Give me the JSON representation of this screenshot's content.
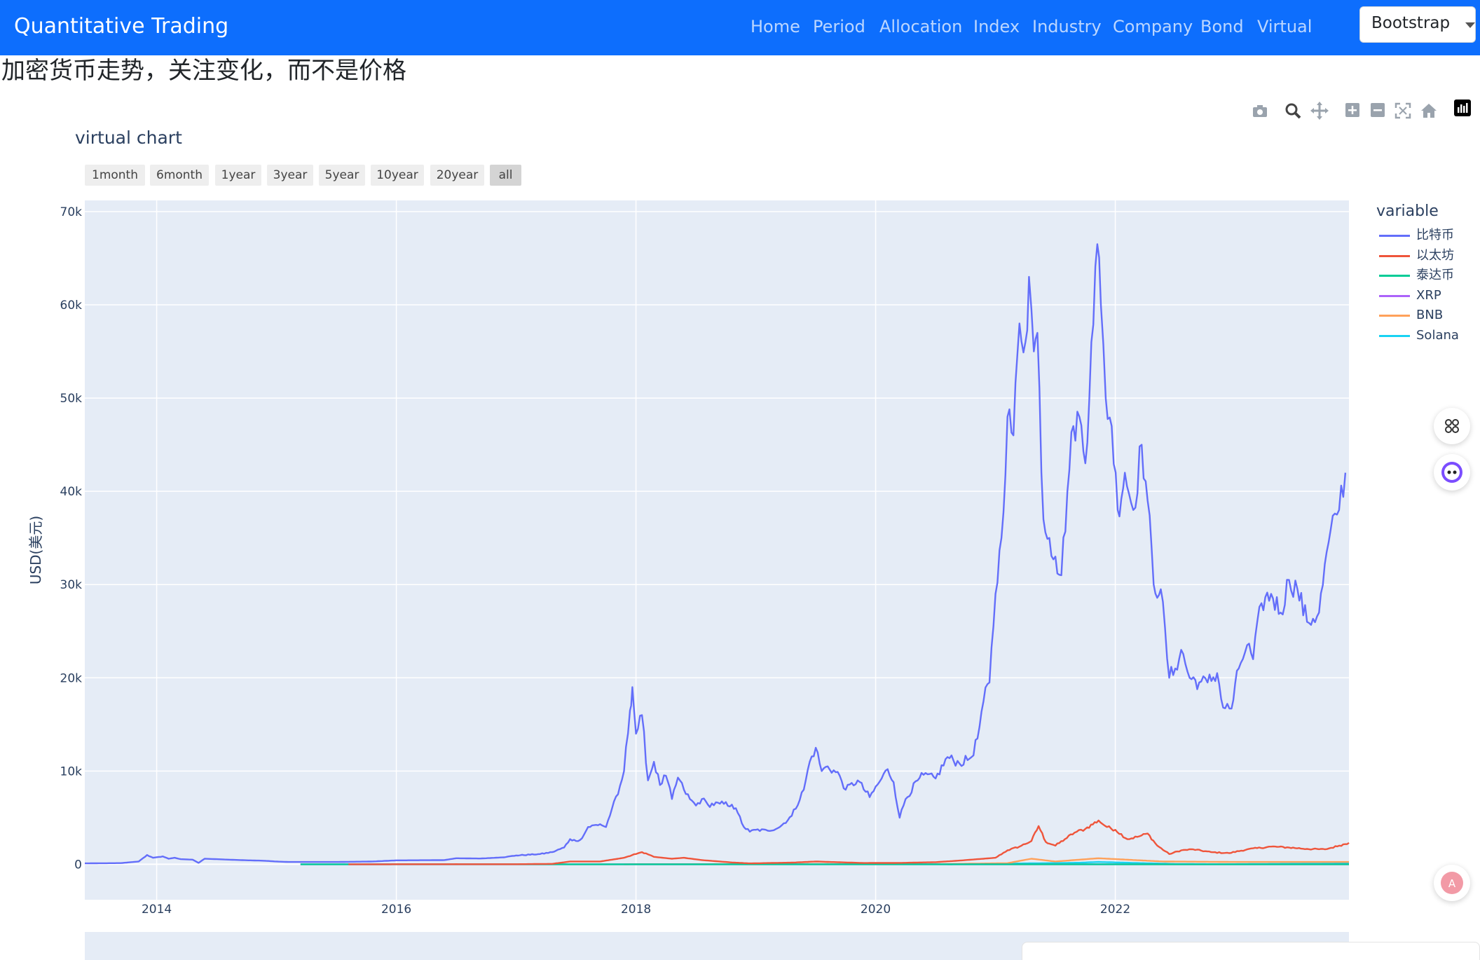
{
  "navbar": {
    "brand": "Quantitative Trading",
    "items": [
      "Home",
      "Period",
      "Allocation",
      "Index",
      "Industry",
      "Company",
      "Bond",
      "Virtual"
    ],
    "theme_select": "Bootstrap",
    "color": "#0d6efd"
  },
  "page": {
    "heading": "加密货币走势，关注变化，而不是价格"
  },
  "modebar": {
    "icons": [
      "camera-icon",
      "zoom-icon",
      "pan-icon",
      "zoom-in-icon",
      "zoom-out-icon",
      "autoscale-icon",
      "home-icon",
      "plotly-logo-icon"
    ]
  },
  "range_selector": {
    "buttons": [
      "1month",
      "6month",
      "1year",
      "3year",
      "5year",
      "10year",
      "20year",
      "all"
    ],
    "active": "all"
  },
  "chart_data": {
    "type": "line",
    "title": "virtual chart",
    "xlabel": "",
    "ylabel": "USD(美元)",
    "xlim": [
      2013.4,
      2023.95
    ],
    "ylim": [
      -3800,
      71200
    ],
    "x_ticks": [
      {
        "label": "2014",
        "value": 2014
      },
      {
        "label": "2016",
        "value": 2016
      },
      {
        "label": "2018",
        "value": 2018
      },
      {
        "label": "2020",
        "value": 2020
      },
      {
        "label": "2022",
        "value": 2022
      }
    ],
    "y_ticks": [
      {
        "label": "0",
        "value": 0
      },
      {
        "label": "10k",
        "value": 10000
      },
      {
        "label": "20k",
        "value": 20000
      },
      {
        "label": "30k",
        "value": 30000
      },
      {
        "label": "40k",
        "value": 40000
      },
      {
        "label": "50k",
        "value": 50000
      },
      {
        "label": "60k",
        "value": 60000
      },
      {
        "label": "70k",
        "value": 70000
      }
    ],
    "grid": true,
    "legend": {
      "title": "variable",
      "placement": "right"
    },
    "series": [
      {
        "name": "比特币",
        "color": "#636efa",
        "points": [
          [
            2013.4,
            100
          ],
          [
            2013.7,
            130
          ],
          [
            2013.85,
            300
          ],
          [
            2013.92,
            1000
          ],
          [
            2013.97,
            700
          ],
          [
            2014.05,
            850
          ],
          [
            2014.1,
            600
          ],
          [
            2014.15,
            700
          ],
          [
            2014.2,
            550
          ],
          [
            2014.3,
            500
          ],
          [
            2014.35,
            150
          ],
          [
            2014.4,
            600
          ],
          [
            2014.5,
            550
          ],
          [
            2014.7,
            450
          ],
          [
            2014.9,
            380
          ],
          [
            2015.0,
            300
          ],
          [
            2015.1,
            250
          ],
          [
            2015.5,
            250
          ],
          [
            2015.8,
            300
          ],
          [
            2016.0,
            420
          ],
          [
            2016.4,
            450
          ],
          [
            2016.5,
            650
          ],
          [
            2016.7,
            620
          ],
          [
            2016.9,
            750
          ],
          [
            2017.0,
            950
          ],
          [
            2017.2,
            1100
          ],
          [
            2017.3,
            1300
          ],
          [
            2017.4,
            1800
          ],
          [
            2017.45,
            2700
          ],
          [
            2017.5,
            2500
          ],
          [
            2017.55,
            2800
          ],
          [
            2017.6,
            4000
          ],
          [
            2017.7,
            4300
          ],
          [
            2017.75,
            4000
          ],
          [
            2017.8,
            6000
          ],
          [
            2017.85,
            7500
          ],
          [
            2017.9,
            10000
          ],
          [
            2017.95,
            16500
          ],
          [
            2017.97,
            19000
          ],
          [
            2018.0,
            14000
          ],
          [
            2018.05,
            16000
          ],
          [
            2018.1,
            9000
          ],
          [
            2018.15,
            11000
          ],
          [
            2018.2,
            8500
          ],
          [
            2018.25,
            9500
          ],
          [
            2018.3,
            7000
          ],
          [
            2018.35,
            9300
          ],
          [
            2018.4,
            8000
          ],
          [
            2018.45,
            7000
          ],
          [
            2018.5,
            6300
          ],
          [
            2018.55,
            7000
          ],
          [
            2018.6,
            6400
          ],
          [
            2018.7,
            6500
          ],
          [
            2018.8,
            6400
          ],
          [
            2018.85,
            5500
          ],
          [
            2018.9,
            4000
          ],
          [
            2018.95,
            3500
          ],
          [
            2019.0,
            3700
          ],
          [
            2019.1,
            3600
          ],
          [
            2019.2,
            4000
          ],
          [
            2019.3,
            5200
          ],
          [
            2019.4,
            8000
          ],
          [
            2019.45,
            11000
          ],
          [
            2019.5,
            12500
          ],
          [
            2019.55,
            10000
          ],
          [
            2019.6,
            10500
          ],
          [
            2019.7,
            9500
          ],
          [
            2019.75,
            8000
          ],
          [
            2019.85,
            9000
          ],
          [
            2019.95,
            7200
          ],
          [
            2020.05,
            9200
          ],
          [
            2020.1,
            10200
          ],
          [
            2020.15,
            8800
          ],
          [
            2020.2,
            5000
          ],
          [
            2020.25,
            7000
          ],
          [
            2020.35,
            9000
          ],
          [
            2020.4,
            9600
          ],
          [
            2020.5,
            9200
          ],
          [
            2020.6,
            11500
          ],
          [
            2020.7,
            10800
          ],
          [
            2020.8,
            11500
          ],
          [
            2020.85,
            13500
          ],
          [
            2020.9,
            17500
          ],
          [
            2020.95,
            19500
          ],
          [
            2021.0,
            29000
          ],
          [
            2021.05,
            35000
          ],
          [
            2021.1,
            48000
          ],
          [
            2021.15,
            46000
          ],
          [
            2021.2,
            58000
          ],
          [
            2021.25,
            56000
          ],
          [
            2021.28,
            63000
          ],
          [
            2021.32,
            55000
          ],
          [
            2021.35,
            57000
          ],
          [
            2021.4,
            37000
          ],
          [
            2021.45,
            35000
          ],
          [
            2021.5,
            33000
          ],
          [
            2021.55,
            31000
          ],
          [
            2021.6,
            40000
          ],
          [
            2021.65,
            47000
          ],
          [
            2021.7,
            48000
          ],
          [
            2021.75,
            43000
          ],
          [
            2021.8,
            56000
          ],
          [
            2021.85,
            66500
          ],
          [
            2021.88,
            60000
          ],
          [
            2021.92,
            50000
          ],
          [
            2021.97,
            47000
          ],
          [
            2022.02,
            38000
          ],
          [
            2022.08,
            42000
          ],
          [
            2022.15,
            38000
          ],
          [
            2022.22,
            45000
          ],
          [
            2022.27,
            39000
          ],
          [
            2022.32,
            30000
          ],
          [
            2022.38,
            29500
          ],
          [
            2022.45,
            20000
          ],
          [
            2022.5,
            21000
          ],
          [
            2022.55,
            23000
          ],
          [
            2022.62,
            20000
          ],
          [
            2022.7,
            19500
          ],
          [
            2022.77,
            19500
          ],
          [
            2022.85,
            20500
          ],
          [
            2022.9,
            16800
          ],
          [
            2022.97,
            16700
          ],
          [
            2023.03,
            21000
          ],
          [
            2023.1,
            23500
          ],
          [
            2023.15,
            22000
          ],
          [
            2023.22,
            28000
          ],
          [
            2023.3,
            29000
          ],
          [
            2023.38,
            27000
          ],
          [
            2023.45,
            30500
          ],
          [
            2023.52,
            29500
          ],
          [
            2023.6,
            26000
          ],
          [
            2023.7,
            27000
          ],
          [
            2023.78,
            34500
          ],
          [
            2023.85,
            37500
          ],
          [
            2023.92,
            42000
          ]
        ]
      },
      {
        "name": "以太坊",
        "color": "#ef553b",
        "points": [
          [
            2015.6,
            1
          ],
          [
            2016.2,
            10
          ],
          [
            2016.5,
            14
          ],
          [
            2017.0,
            10
          ],
          [
            2017.3,
            50
          ],
          [
            2017.45,
            300
          ],
          [
            2017.7,
            300
          ],
          [
            2017.9,
            700
          ],
          [
            2018.0,
            1100
          ],
          [
            2018.05,
            1300
          ],
          [
            2018.15,
            800
          ],
          [
            2018.3,
            600
          ],
          [
            2018.4,
            700
          ],
          [
            2018.55,
            450
          ],
          [
            2018.8,
            200
          ],
          [
            2018.95,
            100
          ],
          [
            2019.3,
            180
          ],
          [
            2019.5,
            300
          ],
          [
            2019.9,
            140
          ],
          [
            2020.2,
            150
          ],
          [
            2020.5,
            230
          ],
          [
            2020.7,
            400
          ],
          [
            2020.9,
            600
          ],
          [
            2021.0,
            700
          ],
          [
            2021.1,
            1500
          ],
          [
            2021.2,
            1900
          ],
          [
            2021.3,
            2500
          ],
          [
            2021.36,
            4100
          ],
          [
            2021.42,
            2400
          ],
          [
            2021.5,
            2000
          ],
          [
            2021.58,
            2700
          ],
          [
            2021.66,
            3400
          ],
          [
            2021.75,
            3800
          ],
          [
            2021.86,
            4700
          ],
          [
            2021.93,
            4000
          ],
          [
            2022.0,
            3700
          ],
          [
            2022.1,
            2700
          ],
          [
            2022.2,
            3000
          ],
          [
            2022.27,
            3300
          ],
          [
            2022.35,
            2000
          ],
          [
            2022.45,
            1100
          ],
          [
            2022.55,
            1500
          ],
          [
            2022.65,
            1600
          ],
          [
            2022.8,
            1300
          ],
          [
            2022.95,
            1200
          ],
          [
            2023.1,
            1600
          ],
          [
            2023.3,
            1900
          ],
          [
            2023.45,
            1800
          ],
          [
            2023.6,
            1650
          ],
          [
            2023.75,
            1600
          ],
          [
            2023.87,
            2000
          ],
          [
            2023.95,
            2300
          ]
        ]
      },
      {
        "name": "泰达币",
        "color": "#00cc96",
        "points": [
          [
            2015.2,
            1
          ],
          [
            2023.95,
            1
          ]
        ]
      },
      {
        "name": "XRP",
        "color": "#ab63fa",
        "points": [
          [
            2015.2,
            0.02
          ],
          [
            2017.95,
            2
          ],
          [
            2023.95,
            0.6
          ]
        ]
      },
      {
        "name": "BNB",
        "color": "#ffa15a",
        "points": [
          [
            2017.9,
            2
          ],
          [
            2018.0,
            15
          ],
          [
            2019.5,
            30
          ],
          [
            2020.5,
            20
          ],
          [
            2021.1,
            120
          ],
          [
            2021.3,
            600
          ],
          [
            2021.5,
            300
          ],
          [
            2021.86,
            650
          ],
          [
            2022.4,
            300
          ],
          [
            2023.0,
            250
          ],
          [
            2023.95,
            250
          ]
        ]
      },
      {
        "name": "Solana",
        "color": "#19d3f3",
        "points": [
          [
            2020.6,
            1
          ],
          [
            2021.7,
            170
          ],
          [
            2021.86,
            250
          ],
          [
            2022.5,
            40
          ],
          [
            2022.9,
            12
          ],
          [
            2023.95,
            100
          ]
        ]
      }
    ]
  }
}
